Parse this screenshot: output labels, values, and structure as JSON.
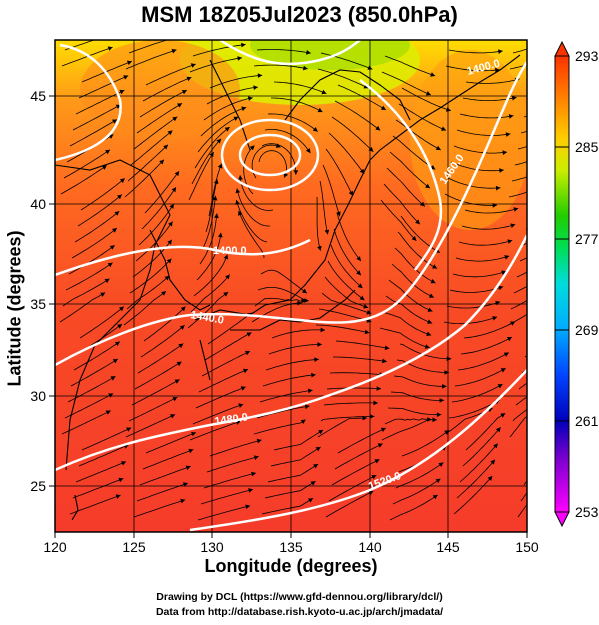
{
  "title": "MSM 18Z05Jul2023 (850.0hPa)",
  "axes": {
    "xlabel": "Longitude (degrees)",
    "ylabel": "Latitude  (degrees)",
    "x_ticks": [
      "120",
      "125",
      "130",
      "135",
      "140",
      "145",
      "150"
    ],
    "y_ticks": [
      "25",
      "30",
      "35",
      "40",
      "45"
    ]
  },
  "colorbar": {
    "min": 253,
    "max": 293,
    "ticks": [
      "293",
      "285",
      "277",
      "269",
      "261",
      "253"
    ],
    "colors": [
      "#ff00ff",
      "#0000aa",
      "#0044ff",
      "#00ccff",
      "#00dd44",
      "#77dd00",
      "#ffee00",
      "#ff9900",
      "#ff4400",
      "#ee1100"
    ]
  },
  "contours": {
    "labels": [
      "1400.0",
      "1440.0",
      "1480.0",
      "1520.0",
      "1460.0",
      "1400.0"
    ]
  },
  "credits": {
    "line1": "Drawing by DCL (https://www.gfd-dennou.org/library/dcl/)",
    "line2": "Data from http://database.rish.kyoto-u.ac.jp/arch/jmadata/"
  }
}
